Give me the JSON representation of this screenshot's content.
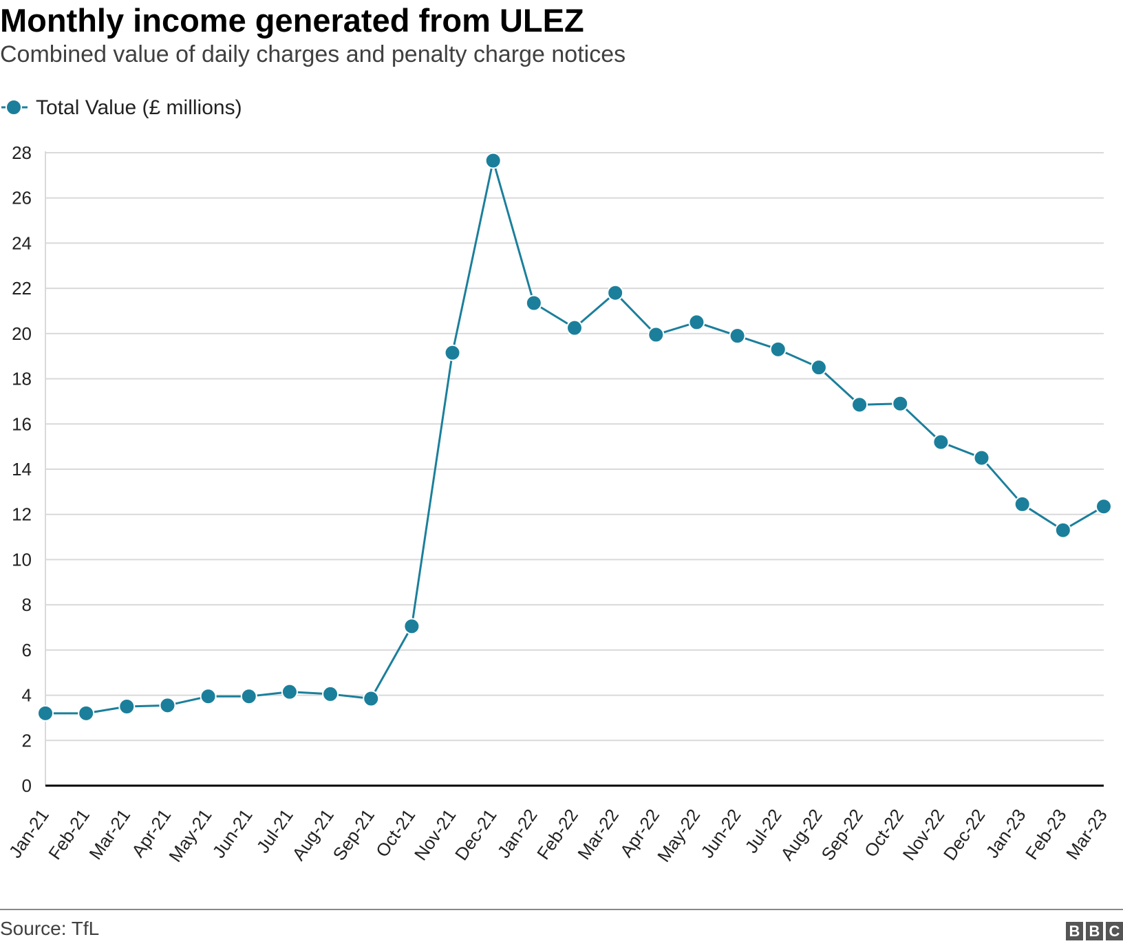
{
  "header": {
    "title": "Monthly income generated from ULEZ",
    "subtitle": "Combined value of daily charges and penalty charge notices"
  },
  "footer": {
    "source": "Source: TfL",
    "logo_letters": [
      "B",
      "B",
      "C"
    ]
  },
  "colors": {
    "series": "#1b7f9b",
    "grid": "#d9d9d9",
    "baseline": "#000000"
  },
  "chart_data": {
    "type": "line",
    "title": "Monthly income generated from ULEZ",
    "subtitle": "Combined value of daily charges and penalty charge notices",
    "xlabel": "",
    "ylabel": "",
    "ylim": [
      0,
      28
    ],
    "yticks": [
      0,
      2,
      4,
      6,
      8,
      10,
      12,
      14,
      16,
      18,
      20,
      22,
      24,
      26,
      28
    ],
    "grid": true,
    "legend_position": "top-left",
    "categories": [
      "Jan-21",
      "Feb-21",
      "Mar-21",
      "Apr-21",
      "May-21",
      "Jun-21",
      "Jul-21",
      "Aug-21",
      "Sep-21",
      "Oct-21",
      "Nov-21",
      "Dec-21",
      "Jan-22",
      "Feb-22",
      "Mar-22",
      "Apr-22",
      "May-22",
      "Jun-22",
      "Jul-22",
      "Aug-22",
      "Sep-22",
      "Oct-22",
      "Nov-22",
      "Dec-22",
      "Jan-23",
      "Feb-23",
      "Mar-23"
    ],
    "series": [
      {
        "name": "Total Value (£ millions)",
        "values": [
          3.2,
          3.2,
          3.5,
          3.55,
          3.95,
          3.95,
          4.15,
          4.05,
          3.85,
          7.05,
          19.15,
          27.65,
          21.35,
          20.25,
          21.8,
          19.95,
          20.5,
          19.9,
          19.3,
          18.5,
          16.85,
          16.9,
          15.2,
          14.5,
          12.45,
          11.3,
          12.35
        ]
      }
    ]
  }
}
